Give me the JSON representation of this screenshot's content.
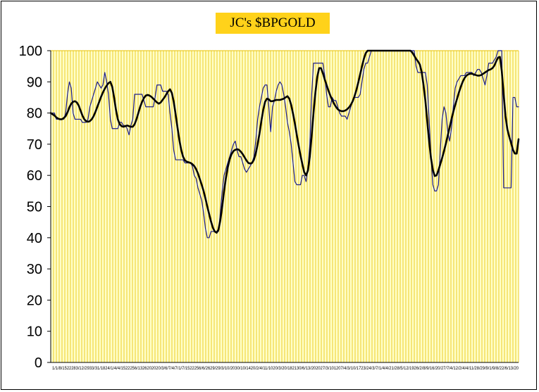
{
  "chart_data": {
    "type": "line",
    "title": "JC's $BPGOLD",
    "xlabel": "",
    "ylabel": "",
    "ylim": [
      0,
      100
    ],
    "yticks": [
      0,
      10,
      20,
      30,
      40,
      50,
      60,
      70,
      80,
      90,
      100
    ],
    "grid": {
      "vertical": true,
      "horizontal": false
    },
    "colors": {
      "plot_bg": "#ffffc8",
      "grid": "#e8c000",
      "raw_line": "#1c1c8c",
      "smooth_line": "#000000",
      "title_bg": "#ffd21a"
    },
    "x_tick_text": "1/1/8/1522283/12/2933/31/1824/1/4/4/1522256/1326202020/3/6/7/4/7/1/7/1522256/6/2629/29/3/10/2030/10/1420/2/4/11/1020/3/20/182130/6/13/202027/3/101207/4/3/10/1723/24/3/7/1/4/4/21/28/5/12/1926/2/8/9/16/20/27/7/4/12/2/4/4/11/28/29/9/1/9/8/22/6/13/20",
    "series": [
      {
        "values": [
          80,
          80,
          80,
          78,
          78,
          78,
          78,
          78,
          80,
          86,
          90,
          88,
          80,
          78,
          78,
          78,
          78,
          77,
          77,
          77,
          78,
          82,
          84,
          86,
          88,
          90,
          89,
          88,
          89,
          93,
          90,
          86,
          78,
          75,
          75,
          75,
          75,
          77,
          77,
          76,
          76,
          75,
          73,
          76,
          78,
          86,
          86,
          86,
          86,
          86,
          84,
          82,
          82,
          82,
          82,
          82,
          85,
          89,
          89,
          89,
          87,
          87,
          87,
          86,
          80,
          75,
          68,
          65,
          65,
          65,
          65,
          65,
          64,
          64,
          64,
          64,
          63,
          60,
          59,
          56,
          54,
          52,
          48,
          43,
          40,
          40,
          42,
          42,
          42,
          42,
          42,
          48,
          55,
          60,
          62,
          64,
          66,
          68,
          70,
          71,
          68,
          66,
          66,
          64,
          62,
          61,
          62,
          63,
          64,
          66,
          71,
          78,
          82,
          85,
          88,
          89,
          89,
          82,
          74,
          82,
          84,
          87,
          89,
          90,
          89,
          86,
          82,
          77,
          74,
          70,
          64,
          58,
          57,
          57,
          57,
          60,
          60,
          58,
          62,
          70,
          86,
          96,
          96,
          96,
          96,
          96,
          96,
          92,
          86,
          82,
          82,
          85,
          84,
          84,
          82,
          80,
          79,
          79,
          79,
          78,
          80,
          82,
          84,
          85,
          85,
          85,
          86,
          90,
          94,
          96,
          96,
          98,
          100,
          100,
          100,
          100,
          100,
          100,
          100,
          100,
          100,
          100,
          100,
          100,
          100,
          100,
          100,
          100,
          100,
          100,
          100,
          100,
          100,
          100,
          100,
          100,
          95,
          93,
          93,
          93,
          93,
          93,
          89,
          78,
          66,
          57,
          55,
          55,
          57,
          68,
          78,
          82,
          80,
          74,
          71,
          75,
          82,
          88,
          90,
          91,
          92,
          92,
          92,
          93,
          93,
          93,
          93,
          92,
          93,
          94,
          94,
          93,
          91,
          89,
          92,
          96,
          96,
          96,
          97,
          98,
          100,
          100,
          100,
          56,
          56,
          56,
          56,
          56,
          85,
          85,
          82,
          82
        ],
        "color": "#1c1c8c"
      },
      {
        "values": [
          80,
          79.6,
          79.2,
          78.6,
          78.2,
          78,
          78,
          78.4,
          79,
          80.2,
          81.8,
          83,
          83.6,
          83.8,
          83.4,
          82.4,
          80.8,
          79.2,
          78,
          77.4,
          77.2,
          77.4,
          78,
          79,
          80.4,
          82,
          83.6,
          85.2,
          86.6,
          87.8,
          88.8,
          89.6,
          90,
          88.4,
          85,
          81,
          78,
          76.4,
          75.8,
          75.6,
          75.8,
          76,
          75.8,
          75.6,
          75.6,
          76.4,
          78,
          80,
          82,
          83.6,
          84.8,
          85.6,
          85.8,
          85.6,
          85.2,
          84.6,
          84,
          83.4,
          83,
          83.4,
          84.2,
          85,
          86,
          87,
          87.6,
          86.4,
          83.6,
          79.6,
          75.4,
          71.4,
          68.2,
          66,
          64.8,
          64.4,
          64.2,
          64,
          63.6,
          63,
          62,
          60.6,
          58.8,
          57,
          55,
          52.6,
          50,
          47.6,
          45.2,
          43.2,
          42,
          41.6,
          42.6,
          45.6,
          50,
          55,
          59.2,
          62.6,
          65.2,
          66.8,
          67.8,
          68.2,
          68.4,
          68.2,
          67.6,
          66.8,
          65.8,
          64.8,
          64,
          63.8,
          64,
          65,
          67,
          70,
          73.4,
          77.4,
          81,
          83.6,
          84.6,
          84.4,
          83.8,
          83.8,
          84,
          84.2,
          84.2,
          84.2,
          84.4,
          84.6,
          85,
          85.4,
          84.6,
          82.6,
          79.8,
          76.6,
          73,
          69.6,
          66.4,
          63.6,
          61,
          60,
          61.6,
          66,
          72.8,
          80.2,
          86.6,
          91.6,
          94.4,
          94.4,
          92.8,
          90.8,
          89,
          87.2,
          85.6,
          84.2,
          83,
          82,
          81.2,
          80.8,
          80.6,
          80.6,
          80.8,
          81.2,
          81.8,
          82.6,
          83.8,
          85.4,
          87.4,
          89.8,
          92.4,
          95,
          97.4,
          99.2,
          100,
          100,
          100,
          100,
          100,
          100,
          100,
          100,
          100,
          100,
          100,
          100,
          100,
          100,
          100,
          100,
          100,
          100,
          100,
          100,
          100,
          100,
          100,
          100,
          99.4,
          98.4,
          97.4,
          96.6,
          95.6,
          93.2,
          89,
          84,
          77.4,
          71,
          65.6,
          61.8,
          59.8,
          60,
          61.6,
          63.6,
          65.6,
          67.8,
          70.2,
          72.8,
          75.4,
          78,
          80.4,
          82.6,
          84.6,
          86.6,
          88.4,
          90,
          91.2,
          92,
          92.4,
          92.6,
          92.6,
          92.4,
          92.2,
          92,
          92,
          92.2,
          92.6,
          93,
          93.4,
          93.8,
          94,
          94.4,
          95.2,
          96.6,
          97.8,
          98,
          93.4,
          86,
          79,
          74.8,
          72.4,
          70.4,
          68.2,
          67,
          67,
          71.6
        ],
        "color": "#000000"
      }
    ]
  }
}
